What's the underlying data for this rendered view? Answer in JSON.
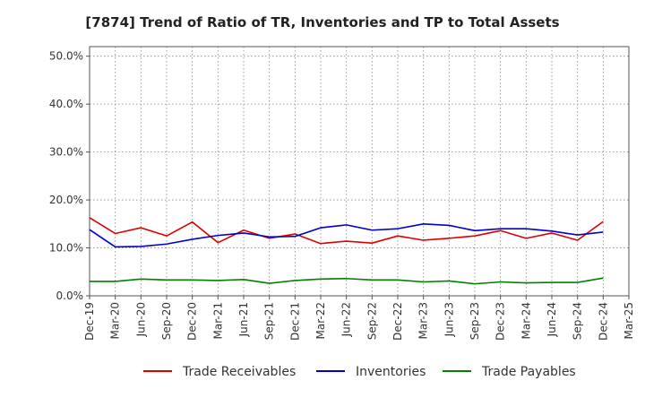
{
  "chart_data": {
    "type": "line",
    "title": "[7874]  Trend of Ratio of TR, Inventories and TP to Total Assets",
    "xlabel": "",
    "ylabel": "",
    "x": [
      "Dec-19",
      "Mar-20",
      "Jun-20",
      "Sep-20",
      "Dec-20",
      "Mar-21",
      "Jun-21",
      "Sep-21",
      "Dec-21",
      "Mar-22",
      "Jun-22",
      "Sep-22",
      "Dec-22",
      "Mar-23",
      "Jun-23",
      "Sep-23",
      "Dec-23",
      "Mar-24",
      "Jun-24",
      "Sep-24",
      "Dec-24",
      "Mar-25"
    ],
    "ylim": [
      0,
      52
    ],
    "yticks": [
      0,
      10,
      20,
      30,
      40,
      50
    ],
    "ytick_labels": [
      "0.0%",
      "10.0%",
      "20.0%",
      "30.0%",
      "40.0%",
      "50.0%"
    ],
    "grid": true,
    "legend_position": "bottom",
    "series": [
      {
        "name": "Trade Receivables",
        "color": "#e00000",
        "values": [
          16.3,
          13.0,
          14.2,
          12.5,
          15.4,
          11.1,
          13.7,
          12.0,
          12.9,
          10.9,
          11.4,
          11.0,
          12.5,
          11.6,
          12.0,
          12.5,
          13.6,
          12.0,
          13.1,
          11.6,
          15.5,
          null
        ]
      },
      {
        "name": "Inventories",
        "color": "#0000cc",
        "values": [
          13.8,
          10.2,
          10.3,
          10.8,
          11.8,
          12.6,
          13.1,
          12.3,
          12.4,
          14.2,
          14.8,
          13.7,
          14.0,
          15.0,
          14.7,
          13.6,
          14.0,
          14.0,
          13.5,
          12.7,
          13.3,
          null
        ]
      },
      {
        "name": "Trade Payables",
        "color": "#008000",
        "values": [
          3.0,
          3.0,
          3.5,
          3.3,
          3.3,
          3.2,
          3.4,
          2.6,
          3.2,
          3.5,
          3.6,
          3.3,
          3.3,
          2.9,
          3.1,
          2.5,
          2.9,
          2.7,
          2.8,
          2.8,
          3.7,
          null
        ]
      }
    ]
  }
}
